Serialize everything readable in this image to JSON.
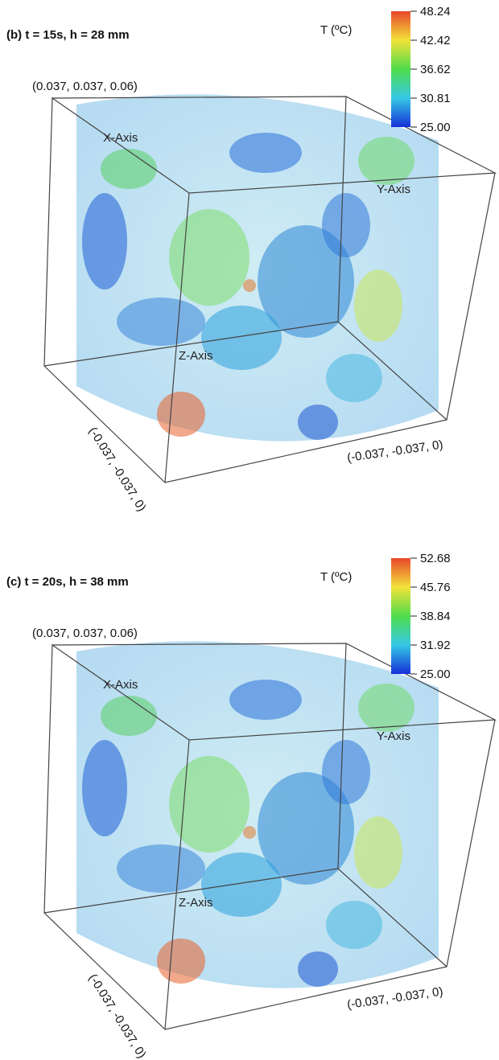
{
  "panels": [
    {
      "title": "(b) t = 15s, h = 28 mm",
      "legend_title": "T (ºC)",
      "colorbar_ticks": [
        "48.24",
        "42.42",
        "36.62",
        "30.81",
        "25.00"
      ],
      "corner_top": "(0.037, 0.037, 0.06)",
      "corner_right": "(-0.037, -0.037, 0)",
      "corner_left": "(-0.037, -0.037, 0)",
      "axis_labels": [
        "X-Axis",
        "Y-Axis",
        "Z-Axis"
      ]
    },
    {
      "title": "(c) t = 20s, h = 38 mm",
      "legend_title": "T (ºC)",
      "colorbar_ticks": [
        "52.68",
        "45.76",
        "38.84",
        "31.92",
        "25.00"
      ],
      "corner_top": "(0.037, 0.037, 0.06)",
      "corner_right": "(-0.037, -0.037, 0)",
      "corner_left": "(-0.037, -0.037, 0)",
      "axis_labels": [
        "X-Axis",
        "Y-Axis",
        "Z-Axis"
      ]
    }
  ]
}
